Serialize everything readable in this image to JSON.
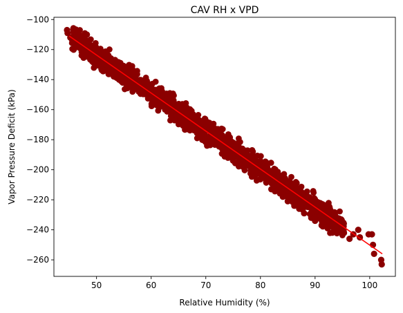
{
  "chart_data": {
    "type": "scatter",
    "title": "CAV RH x VPD",
    "xlabel": "Relative Humidity (%)",
    "ylabel": "Vapor Pressure Deficit (kPa)",
    "xlim": [
      42.2,
      104.7
    ],
    "ylim": [
      -271,
      -98.5
    ],
    "xticks": [
      50,
      60,
      70,
      80,
      90,
      100
    ],
    "yticks": [
      -100,
      -120,
      -140,
      -160,
      -180,
      -200,
      -220,
      -240,
      -260
    ],
    "xtick_labels": [
      "50",
      "60",
      "70",
      "80",
      "90",
      "100"
    ],
    "ytick_labels": [
      "−100",
      "−120",
      "−140",
      "−160",
      "−180",
      "−200",
      "−220",
      "−240",
      "−260"
    ],
    "grid": false,
    "series": [
      {
        "kind": "scatter",
        "color": "#8b0000",
        "points": [
          [
            44.6,
            -107
          ],
          [
            44.7,
            -109
          ],
          [
            45.2,
            -112
          ],
          [
            45.8,
            -114
          ],
          [
            46.3,
            -113
          ],
          [
            47.5,
            -115
          ],
          [
            48.2,
            -118
          ],
          [
            49.0,
            -120
          ],
          [
            50.1,
            -122
          ],
          [
            51.2,
            -126
          ],
          [
            52.0,
            -128
          ],
          [
            53.4,
            -131
          ],
          [
            54.2,
            -129
          ],
          [
            55.0,
            -136
          ],
          [
            56.3,
            -138
          ],
          [
            57.1,
            -143
          ],
          [
            58.0,
            -141
          ],
          [
            59.2,
            -146
          ],
          [
            60.3,
            -150
          ],
          [
            61.0,
            -152
          ],
          [
            62.4,
            -158
          ],
          [
            63.1,
            -155
          ],
          [
            64.0,
            -160
          ],
          [
            65.2,
            -162
          ],
          [
            66.1,
            -168
          ],
          [
            67.3,
            -170
          ],
          [
            68.0,
            -166
          ],
          [
            69.2,
            -175
          ],
          [
            70.1,
            -178
          ],
          [
            71.4,
            -180
          ],
          [
            72.2,
            -177
          ],
          [
            73.0,
            -186
          ],
          [
            74.3,
            -189
          ],
          [
            75.1,
            -191
          ],
          [
            76.2,
            -188
          ],
          [
            77.0,
            -197
          ],
          [
            78.3,
            -199
          ],
          [
            79.1,
            -203
          ],
          [
            80.0,
            -206
          ],
          [
            81.2,
            -208
          ],
          [
            82.0,
            -213
          ],
          [
            83.3,
            -210
          ],
          [
            84.1,
            -218
          ],
          [
            85.0,
            -221
          ],
          [
            86.2,
            -224
          ],
          [
            87.1,
            -226
          ],
          [
            88.0,
            -229
          ],
          [
            89.3,
            -232
          ],
          [
            90.0,
            -234
          ],
          [
            91.2,
            -237
          ],
          [
            92.3,
            -239
          ],
          [
            93.1,
            -236
          ],
          [
            94.0,
            -241
          ],
          [
            95.2,
            -240
          ],
          [
            96.3,
            -246
          ],
          [
            97.0,
            -243
          ],
          [
            97.9,
            -240
          ],
          [
            98.2,
            -245
          ],
          [
            99.8,
            -243
          ],
          [
            100.4,
            -243
          ],
          [
            100.6,
            -250
          ],
          [
            100.8,
            -256
          ],
          [
            102.1,
            -260
          ],
          [
            102.2,
            -263
          ]
        ]
      },
      {
        "kind": "line",
        "name": "",
        "color": "#ff0000",
        "x": [
          45,
          102.3
        ],
        "y": [
          -111,
          -256
        ]
      }
    ]
  }
}
